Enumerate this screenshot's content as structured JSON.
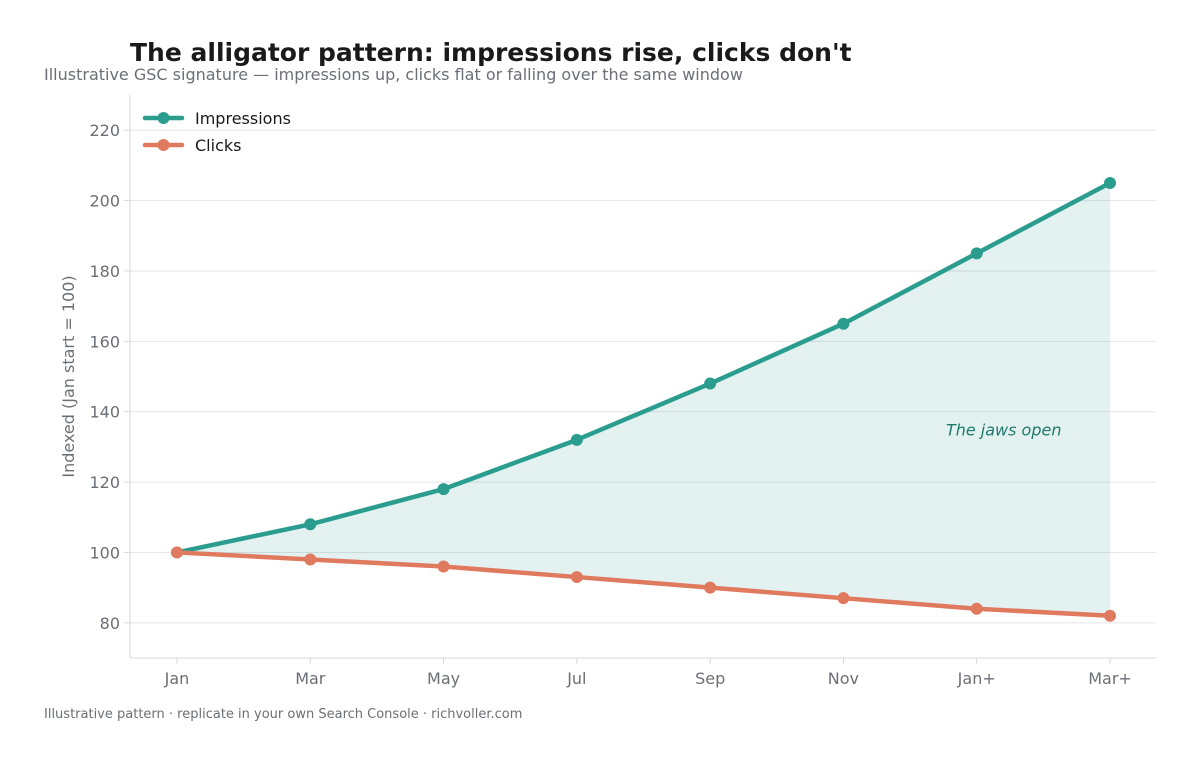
{
  "header": {
    "title": "The alligator pattern: impressions rise, clicks don't",
    "subtitle": "Illustrative GSC signature — impressions up, clicks flat or falling over the same window"
  },
  "footer": {
    "text": "Illustrative pattern · replicate in your own Search Console · richvoller.com"
  },
  "chart_data": {
    "type": "line",
    "title": "The alligator pattern: impressions rise, clicks don't",
    "subtitle": "Illustrative GSC signature — impressions up, clicks flat or falling over the same window",
    "xlabel": "",
    "ylabel": "Indexed (Jan start = 100)",
    "categories": [
      "Jan",
      "Mar",
      "May",
      "Jul",
      "Sep",
      "Nov",
      "Jan+",
      "Mar+"
    ],
    "ylim": [
      70,
      230
    ],
    "yticks": [
      80,
      100,
      120,
      140,
      160,
      180,
      200,
      220
    ],
    "grid": "horizontal",
    "legend_position": "top-left",
    "fill_between": true,
    "series": [
      {
        "name": "Impressions",
        "color": "#2a9d8f",
        "values": [
          100,
          108,
          118,
          132,
          148,
          165,
          185,
          205
        ]
      },
      {
        "name": "Clicks",
        "color": "#e07a5f",
        "values": [
          100,
          98,
          96,
          93,
          90,
          87,
          84,
          82
        ]
      }
    ],
    "annotations": [
      {
        "text": "The jaws open",
        "x": "Jan+",
        "y": 135,
        "color": "#1f7a6b"
      }
    ],
    "colors": {
      "fill": "#2a9d8f",
      "grid": "#e3e5e8",
      "axis": "#d6d9dd"
    }
  }
}
